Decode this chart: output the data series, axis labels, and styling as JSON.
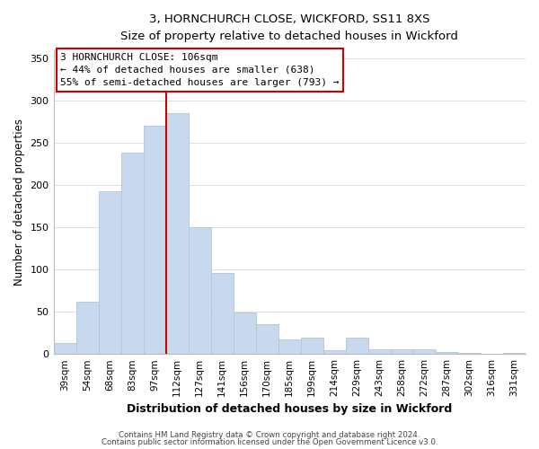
{
  "title": "3, HORNCHURCH CLOSE, WICKFORD, SS11 8XS",
  "subtitle": "Size of property relative to detached houses in Wickford",
  "xlabel": "Distribution of detached houses by size in Wickford",
  "ylabel": "Number of detached properties",
  "bar_color": "#c8d9ee",
  "bar_edge_color": "#afc4de",
  "categories": [
    "39sqm",
    "54sqm",
    "68sqm",
    "83sqm",
    "97sqm",
    "112sqm",
    "127sqm",
    "141sqm",
    "156sqm",
    "170sqm",
    "185sqm",
    "199sqm",
    "214sqm",
    "229sqm",
    "243sqm",
    "258sqm",
    "272sqm",
    "287sqm",
    "302sqm",
    "316sqm",
    "331sqm"
  ],
  "values": [
    13,
    62,
    192,
    238,
    270,
    285,
    150,
    96,
    49,
    35,
    17,
    19,
    4,
    19,
    5,
    6,
    5,
    2,
    1,
    0,
    1
  ],
  "vline_x": 4.5,
  "vline_color": "#cc0000",
  "annotation_title": "3 HORNCHURCH CLOSE: 106sqm",
  "annotation_line1": "← 44% of detached houses are smaller (638)",
  "annotation_line2": "55% of semi-detached houses are larger (793) →",
  "annotation_box_color": "#ffffff",
  "annotation_box_edge": "#cc0000",
  "ylim": [
    0,
    360
  ],
  "yticks": [
    0,
    50,
    100,
    150,
    200,
    250,
    300,
    350
  ],
  "footer1": "Contains HM Land Registry data © Crown copyright and database right 2024.",
  "footer2": "Contains public sector information licensed under the Open Government Licence v3.0.",
  "background_color": "#ffffff",
  "grid_color": "#dddddd"
}
